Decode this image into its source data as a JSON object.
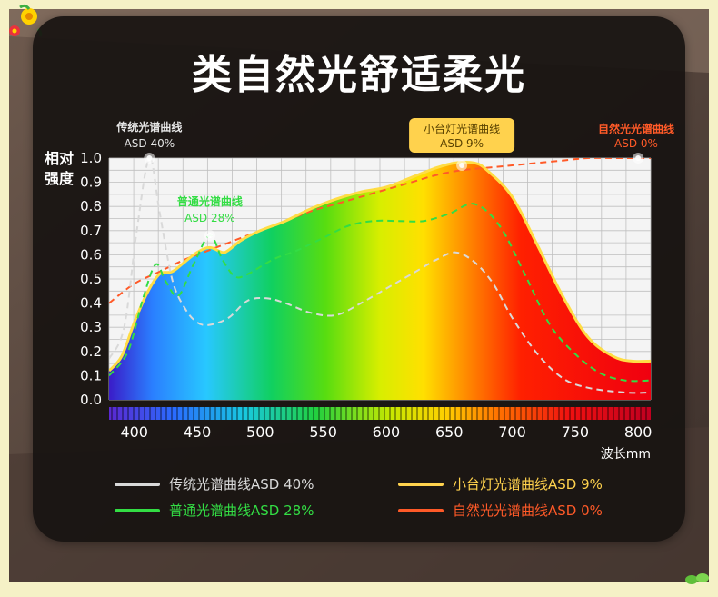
{
  "page": {
    "title": "类自然光舒适柔光"
  },
  "chart_data": {
    "type": "line",
    "title": "类自然光舒适柔光",
    "ylabel": "相对强度",
    "xlabel": "波长mm",
    "xlim": [
      380,
      810
    ],
    "ylim": [
      0,
      1.0
    ],
    "xticks": [
      400,
      450,
      500,
      550,
      600,
      650,
      700,
      750,
      800
    ],
    "yticks": [
      "0.0",
      "0.1",
      "0.2",
      "0.3",
      "0.4",
      "0.5",
      "0.6",
      "0.7",
      "0.8",
      "0.9",
      "1.0"
    ],
    "grid": true,
    "legend_position": "bottom",
    "series": [
      {
        "id": "traditional",
        "name": "传统光谱曲线ASD 40%",
        "color": "#d9d9d9",
        "style": "dashed",
        "points": [
          [
            380,
            0.17
          ],
          [
            392,
            0.3
          ],
          [
            402,
            0.7
          ],
          [
            412,
            1.0
          ],
          [
            420,
            0.78
          ],
          [
            430,
            0.5
          ],
          [
            440,
            0.38
          ],
          [
            450,
            0.32
          ],
          [
            460,
            0.31
          ],
          [
            475,
            0.34
          ],
          [
            490,
            0.41
          ],
          [
            505,
            0.42
          ],
          [
            520,
            0.4
          ],
          [
            540,
            0.36
          ],
          [
            560,
            0.35
          ],
          [
            580,
            0.4
          ],
          [
            600,
            0.46
          ],
          [
            620,
            0.52
          ],
          [
            640,
            0.58
          ],
          [
            655,
            0.61
          ],
          [
            670,
            0.57
          ],
          [
            685,
            0.48
          ],
          [
            700,
            0.34
          ],
          [
            720,
            0.19
          ],
          [
            740,
            0.09
          ],
          [
            760,
            0.05
          ],
          [
            790,
            0.03
          ],
          [
            810,
            0.03
          ]
        ]
      },
      {
        "id": "common",
        "name": "普通光谱曲线ASD 28%",
        "color": "#33dd44",
        "style": "dashed",
        "points": [
          [
            380,
            0.1
          ],
          [
            395,
            0.2
          ],
          [
            407,
            0.42
          ],
          [
            417,
            0.56
          ],
          [
            425,
            0.49
          ],
          [
            435,
            0.43
          ],
          [
            447,
            0.56
          ],
          [
            460,
            0.68
          ],
          [
            470,
            0.58
          ],
          [
            480,
            0.51
          ],
          [
            490,
            0.52
          ],
          [
            510,
            0.58
          ],
          [
            530,
            0.62
          ],
          [
            550,
            0.67
          ],
          [
            570,
            0.72
          ],
          [
            590,
            0.74
          ],
          [
            610,
            0.74
          ],
          [
            630,
            0.74
          ],
          [
            650,
            0.77
          ],
          [
            670,
            0.81
          ],
          [
            690,
            0.72
          ],
          [
            710,
            0.52
          ],
          [
            730,
            0.31
          ],
          [
            750,
            0.19
          ],
          [
            770,
            0.11
          ],
          [
            790,
            0.08
          ],
          [
            810,
            0.08
          ]
        ]
      },
      {
        "id": "desk_lamp",
        "name": "小台灯光谱曲线ASD 9%",
        "color": "#ffdd44",
        "style": "solid",
        "points": [
          [
            380,
            0.12
          ],
          [
            390,
            0.18
          ],
          [
            400,
            0.32
          ],
          [
            410,
            0.44
          ],
          [
            420,
            0.52
          ],
          [
            430,
            0.53
          ],
          [
            440,
            0.57
          ],
          [
            450,
            0.61
          ],
          [
            460,
            0.63
          ],
          [
            470,
            0.61
          ],
          [
            475,
            0.62
          ],
          [
            485,
            0.66
          ],
          [
            500,
            0.7
          ],
          [
            520,
            0.74
          ],
          [
            540,
            0.79
          ],
          [
            560,
            0.83
          ],
          [
            580,
            0.86
          ],
          [
            600,
            0.88
          ],
          [
            620,
            0.92
          ],
          [
            640,
            0.96
          ],
          [
            655,
            0.98
          ],
          [
            670,
            0.98
          ],
          [
            680,
            0.95
          ],
          [
            700,
            0.84
          ],
          [
            720,
            0.64
          ],
          [
            740,
            0.43
          ],
          [
            760,
            0.26
          ],
          [
            780,
            0.18
          ],
          [
            795,
            0.16
          ],
          [
            810,
            0.16
          ]
        ]
      },
      {
        "id": "natural",
        "name": "自然光光谱曲线ASD 0%",
        "color": "#ff5a28",
        "style": "dashed",
        "points": [
          [
            380,
            0.4
          ],
          [
            400,
            0.48
          ],
          [
            420,
            0.53
          ],
          [
            440,
            0.58
          ],
          [
            460,
            0.62
          ],
          [
            480,
            0.66
          ],
          [
            500,
            0.7
          ],
          [
            520,
            0.74
          ],
          [
            540,
            0.78
          ],
          [
            560,
            0.81
          ],
          [
            580,
            0.84
          ],
          [
            600,
            0.87
          ],
          [
            620,
            0.9
          ],
          [
            640,
            0.93
          ],
          [
            660,
            0.95
          ],
          [
            680,
            0.96
          ],
          [
            700,
            0.97
          ],
          [
            720,
            0.98
          ],
          [
            740,
            0.99
          ],
          [
            760,
            1.0
          ],
          [
            780,
            1.0
          ],
          [
            810,
            1.0
          ]
        ]
      }
    ],
    "annotations": [
      {
        "id": "traditional",
        "label": "传统光谱曲线",
        "value": "ASD 40%",
        "x": 412,
        "y": 1.0,
        "color": "#e6e6e6",
        "box": false
      },
      {
        "id": "common",
        "label": "普通光谱曲线",
        "value": "ASD 28%",
        "x": 460,
        "y": 0.68,
        "color": "#33dd44",
        "box": false
      },
      {
        "id": "desk_lamp",
        "label": "小台灯光谱曲线",
        "value": "ASD 9%",
        "x": 660,
        "y": 0.97,
        "color": "#5a4200",
        "box": true,
        "box_color": "#ffd24d"
      },
      {
        "id": "natural",
        "label": "自然光光谱曲线",
        "value": "ASD 0%",
        "x": 800,
        "y": 1.0,
        "color": "#ff5a28",
        "box": false
      }
    ],
    "legend": [
      {
        "id": "traditional",
        "label": "传统光谱曲线ASD 40%",
        "color": "#d9d9d9"
      },
      {
        "id": "desk_lamp",
        "label": "小台灯光谱曲线ASD 9%",
        "color": "#ffd24d"
      },
      {
        "id": "common",
        "label": "普通光谱曲线ASD 28%",
        "color": "#33dd44"
      },
      {
        "id": "natural",
        "label": "自然光光谱曲线ASD 0%",
        "color": "#ff5a28"
      }
    ]
  }
}
